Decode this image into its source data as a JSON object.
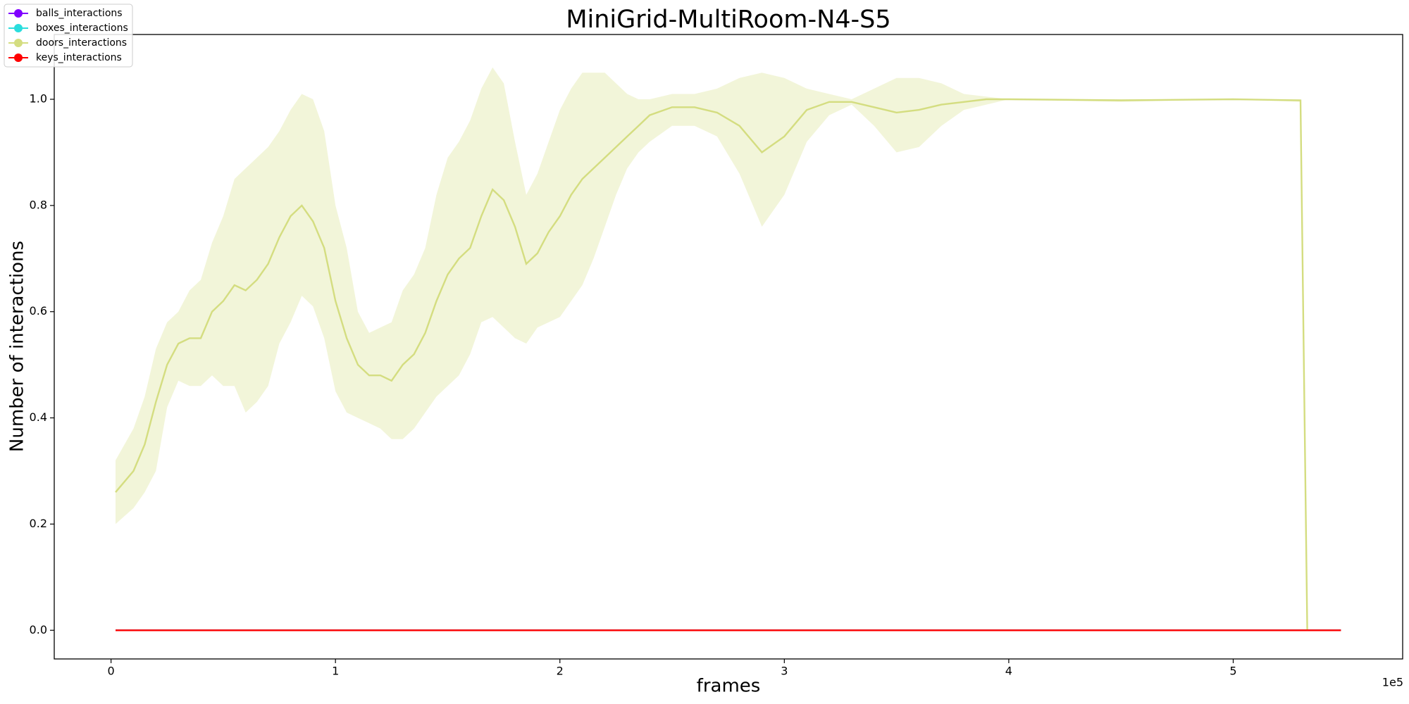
{
  "chart_data": {
    "type": "line",
    "title": "MiniGrid-MultiRoom-N4-S5",
    "x_label": "frames",
    "y_label": "Number of interactions",
    "x_offset_label": "1e5",
    "xlim": [
      -25300,
      575500
    ],
    "ylim": [
      -0.054,
      1.122
    ],
    "xticks": [
      0,
      {
        "value": 100000,
        "label": "1"
      },
      {
        "value": 200000,
        "label": "2"
      },
      {
        "value": 300000,
        "label": "3"
      },
      {
        "value": 400000,
        "label": "4"
      },
      {
        "value": 500000,
        "label": "5"
      }
    ],
    "yticks": [
      {
        "value": 0,
        "label": "0.0"
      },
      {
        "value": 0.2,
        "label": "0.2"
      },
      {
        "value": 0.4,
        "label": "0.4"
      },
      {
        "value": 0.6,
        "label": "0.6"
      },
      {
        "value": 0.8,
        "label": "0.8"
      },
      {
        "value": 1.0,
        "label": "1.0"
      }
    ],
    "legend": "upper left",
    "series": [
      {
        "name": "balls_interactions",
        "color": "#8000ff",
        "x": [
          2000,
          548000
        ],
        "values": [
          0,
          0
        ]
      },
      {
        "name": "boxes_interactions",
        "color": "#2adddd",
        "x": [
          2000,
          548000
        ],
        "values": [
          0,
          0
        ]
      },
      {
        "name": "doors_interactions",
        "color": "#d4dd80",
        "x": [
          2000,
          10000,
          15000,
          20000,
          25000,
          30000,
          35000,
          40000,
          45000,
          50000,
          55000,
          60000,
          65000,
          70000,
          75000,
          80000,
          85000,
          90000,
          95000,
          100000,
          105000,
          110000,
          115000,
          120000,
          125000,
          130000,
          135000,
          140000,
          145000,
          150000,
          155000,
          160000,
          165000,
          170000,
          175000,
          180000,
          185000,
          190000,
          195000,
          200000,
          205000,
          210000,
          215000,
          220000,
          225000,
          230000,
          235000,
          240000,
          250000,
          260000,
          270000,
          280000,
          290000,
          300000,
          310000,
          320000,
          330000,
          340000,
          350000,
          360000,
          370000,
          380000,
          390000,
          400000,
          450000,
          500000,
          530000,
          533000
        ],
        "values": [
          0.26,
          0.3,
          0.35,
          0.43,
          0.5,
          0.54,
          0.55,
          0.55,
          0.6,
          0.62,
          0.65,
          0.64,
          0.66,
          0.69,
          0.74,
          0.78,
          0.8,
          0.77,
          0.72,
          0.62,
          0.55,
          0.5,
          0.48,
          0.48,
          0.47,
          0.5,
          0.52,
          0.56,
          0.62,
          0.67,
          0.7,
          0.72,
          0.78,
          0.83,
          0.81,
          0.76,
          0.69,
          0.71,
          0.75,
          0.78,
          0.82,
          0.85,
          0.87,
          0.89,
          0.91,
          0.93,
          0.95,
          0.97,
          0.985,
          0.985,
          0.975,
          0.95,
          0.9,
          0.93,
          0.98,
          0.995,
          0.995,
          0.985,
          0.975,
          0.98,
          0.99,
          0.995,
          1.0,
          1.0,
          0.998,
          1.0,
          0.998,
          0
        ],
        "lower": [
          0.2,
          0.23,
          0.26,
          0.3,
          0.42,
          0.47,
          0.46,
          0.46,
          0.48,
          0.46,
          0.46,
          0.41,
          0.43,
          0.46,
          0.54,
          0.58,
          0.63,
          0.61,
          0.55,
          0.45,
          0.41,
          0.4,
          0.39,
          0.38,
          0.36,
          0.36,
          0.38,
          0.41,
          0.44,
          0.46,
          0.48,
          0.52,
          0.58,
          0.59,
          0.57,
          0.55,
          0.54,
          0.57,
          0.58,
          0.59,
          0.62,
          0.65,
          0.7,
          0.76,
          0.82,
          0.87,
          0.9,
          0.92,
          0.95,
          0.95,
          0.93,
          0.86,
          0.76,
          0.82,
          0.92,
          0.97,
          0.99,
          0.95,
          0.9,
          0.91,
          0.95,
          0.98,
          0.99,
          1.0,
          0.995,
          1.0,
          0.995,
          0
        ],
        "upper": [
          0.32,
          0.38,
          0.44,
          0.53,
          0.58,
          0.6,
          0.64,
          0.66,
          0.73,
          0.78,
          0.85,
          0.87,
          0.89,
          0.91,
          0.94,
          0.98,
          1.01,
          1.0,
          0.94,
          0.8,
          0.72,
          0.6,
          0.56,
          0.57,
          0.58,
          0.64,
          0.67,
          0.72,
          0.82,
          0.89,
          0.92,
          0.96,
          1.02,
          1.06,
          1.03,
          0.92,
          0.82,
          0.86,
          0.92,
          0.98,
          1.02,
          1.05,
          1.05,
          1.05,
          1.03,
          1.01,
          1.0,
          1.0,
          1.01,
          1.01,
          1.02,
          1.04,
          1.05,
          1.04,
          1.02,
          1.01,
          1.0,
          1.02,
          1.04,
          1.04,
          1.03,
          1.01,
          1.005,
          1.0,
          1.0,
          1.0,
          1.0,
          0
        ]
      },
      {
        "name": "keys_interactions",
        "color": "#ff0000",
        "x": [
          2000,
          548000
        ],
        "values": [
          0,
          0
        ]
      }
    ]
  }
}
